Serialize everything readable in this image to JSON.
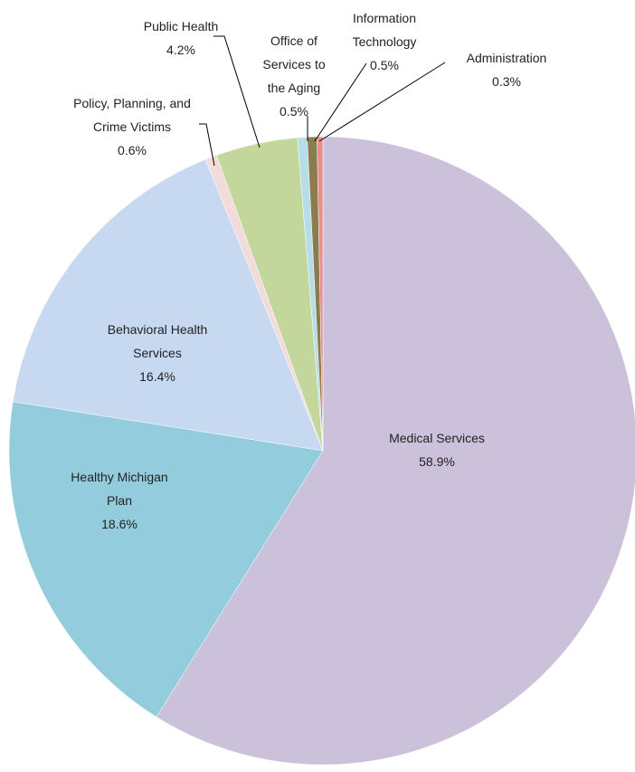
{
  "chart_data": {
    "type": "pie",
    "categories": [
      "Medical Services",
      "Healthy Michigan Plan",
      "Behavioral Health Services",
      "Policy, Planning, and Crime Victims",
      "Public Health",
      "Office of Services to the Aging",
      "Information Technology",
      "Administration"
    ],
    "values": [
      58.9,
      18.6,
      16.4,
      0.6,
      4.2,
      0.5,
      0.5,
      0.3
    ],
    "value_labels": [
      "58.9%",
      "18.6%",
      "16.4%",
      "0.6%",
      "4.2%",
      "0.5%",
      "0.5%",
      "0.3%"
    ],
    "colors": [
      "#ccc1da",
      "#93cddd",
      "#c6d9f1",
      "#f2dcdb",
      "#c3d69b",
      "#b7dee8",
      "#8c7b4f",
      "#e6908c"
    ]
  }
}
